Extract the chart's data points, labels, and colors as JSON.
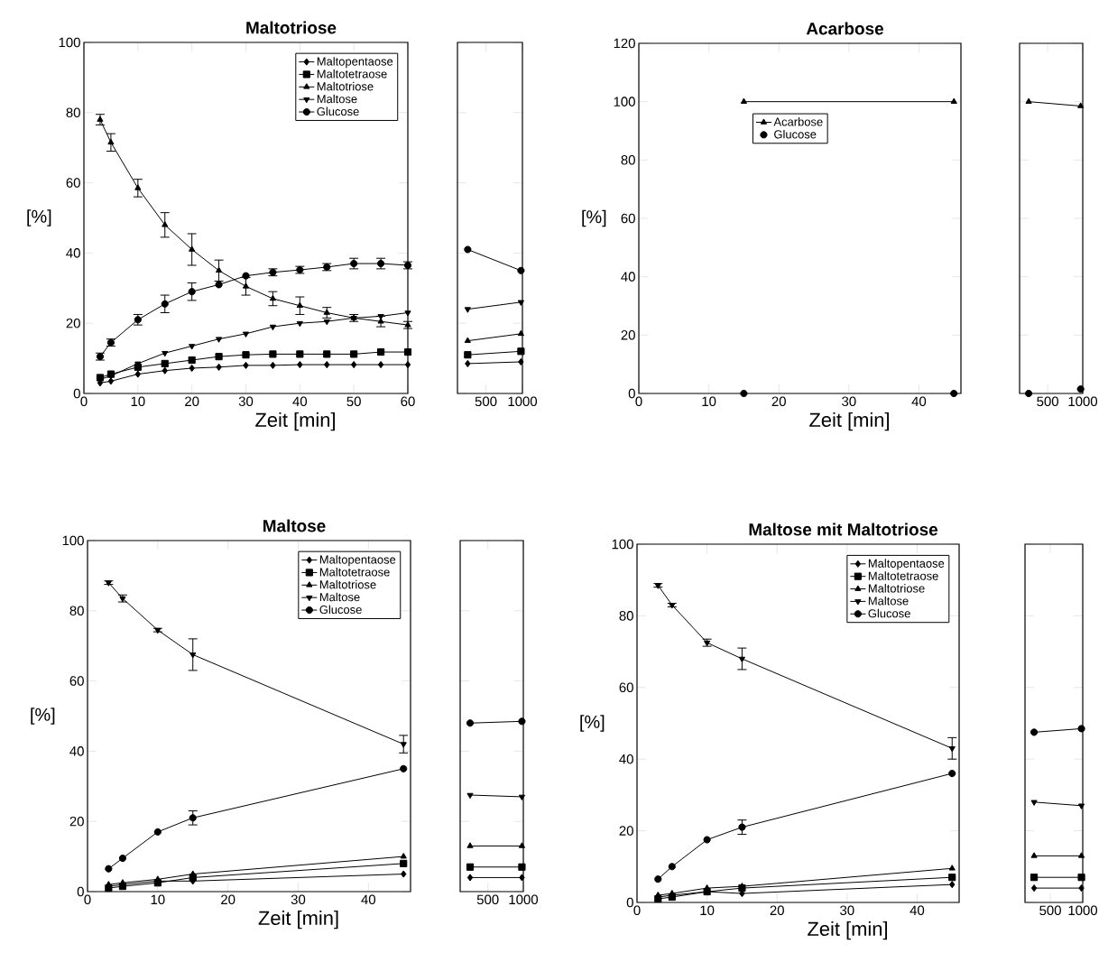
{
  "chart_data": [
    {
      "type": "line",
      "title": "Maltotriose",
      "xlabel": "Zeit [min]",
      "ylabel": "[%]",
      "x": [
        3,
        5,
        10,
        15,
        20,
        25,
        30,
        35,
        40,
        45,
        50,
        55,
        60
      ],
      "xlim": [
        0,
        60
      ],
      "xticks": [
        0,
        10,
        20,
        30,
        40,
        50,
        60
      ],
      "ylim": [
        0,
        100
      ],
      "yticks": [
        0,
        20,
        40,
        60,
        80,
        100
      ],
      "legend": "top right",
      "series": [
        {
          "name": "Maltopentaose",
          "color": "#000000",
          "marker": "diamond",
          "values": [
            3,
            3.5,
            5.5,
            6.5,
            7.2,
            7.5,
            8,
            8,
            8.2,
            8.2,
            8.2,
            8.2,
            8.2
          ]
        },
        {
          "name": "Maltotetraose",
          "color": "#000000",
          "marker": "square",
          "values": [
            4.5,
            5.5,
            7.5,
            8.5,
            9.5,
            10.5,
            11,
            11.2,
            11.2,
            11.2,
            11.2,
            11.8,
            11.8
          ]
        },
        {
          "name": "Maltotriose",
          "color": "#000000",
          "marker": "triangle",
          "values": [
            78,
            71.5,
            58.5,
            48,
            41,
            35,
            30.5,
            27,
            25,
            23,
            21.5,
            20.5,
            19.5
          ],
          "errors": [
            1.5,
            2.5,
            2.5,
            3.5,
            4.5,
            3,
            2.5,
            2,
            2.5,
            1.5,
            1,
            1.5,
            1
          ]
        },
        {
          "name": "Maltose",
          "color": "#000000",
          "marker": "triangle-down",
          "values": [
            4,
            5,
            8.5,
            11.5,
            13.5,
            15.5,
            17,
            19,
            20,
            20.5,
            21.5,
            22,
            23
          ]
        },
        {
          "name": "Glucose",
          "color": "#000000",
          "marker": "circle",
          "values": [
            10.5,
            14.5,
            21,
            25.5,
            29,
            31,
            33.5,
            34.5,
            35.2,
            36,
            37,
            37,
            36.5
          ],
          "errors": [
            1,
            1,
            1.5,
            2.5,
            2.5,
            null,
            null,
            1,
            1,
            1,
            1.5,
            1.5,
            1
          ]
        }
      ]
    },
    {
      "type": "line",
      "x": [
        250,
        980
      ],
      "xlim": [
        110,
        1000
      ],
      "xticks": [
        500,
        1000
      ],
      "ylim": [
        0,
        100
      ],
      "yticks": [
        0,
        20,
        40,
        60,
        80,
        100
      ],
      "tick_labels": "x",
      "series": [
        {
          "color": "#000000",
          "marker": "diamond",
          "values": [
            8.5,
            9
          ]
        },
        {
          "color": "#000000",
          "marker": "square",
          "values": [
            11,
            12
          ]
        },
        {
          "color": "#000000",
          "marker": "triangle",
          "values": [
            15,
            17
          ]
        },
        {
          "color": "#000000",
          "marker": "triangle-down",
          "values": [
            24,
            26
          ]
        },
        {
          "color": "#000000",
          "marker": "circle",
          "values": [
            41,
            35
          ]
        }
      ]
    },
    {
      "type": "line",
      "title": "Acarbose",
      "xlabel": "Zeit [min]",
      "ylabel": "[%]",
      "x": [
        15,
        45
      ],
      "xlim": [
        0,
        46
      ],
      "xticks": [
        0,
        10,
        20,
        30,
        40
      ],
      "ylim": [
        0,
        120
      ],
      "yticks": [
        0,
        20,
        40,
        60,
        80,
        100,
        120
      ],
      "legend": "top",
      "series": [
        {
          "name": "Acarbose",
          "color": "#000000",
          "marker": "triangle",
          "values": [
            100,
            100
          ]
        },
        {
          "name": "Glucose",
          "type": "scatter",
          "color": "#000000",
          "marker": "circle",
          "values": [
            0,
            0
          ]
        }
      ]
    },
    {
      "type": "line",
      "x": [
        230,
        970
      ],
      "xlim": [
        100,
        1000
      ],
      "xticks": [
        500,
        1000
      ],
      "ylim": [
        0,
        120
      ],
      "yticks": [
        0,
        20,
        40,
        60,
        80,
        100,
        120
      ],
      "tick_labels": "x",
      "series": [
        {
          "color": "#000000",
          "marker": "triangle",
          "values": [
            100,
            98.5
          ]
        },
        {
          "type": "scatter",
          "color": "#000000",
          "marker": "circle",
          "values": [
            0,
            1.5
          ]
        }
      ]
    },
    {
      "type": "line",
      "title": "Maltose",
      "xlabel": "Zeit [min]",
      "ylabel": "[%]",
      "x": [
        3,
        5,
        10,
        15,
        45
      ],
      "xlim": [
        0,
        46
      ],
      "xticks": [
        0,
        10,
        20,
        30,
        40
      ],
      "ylim": [
        0,
        100
      ],
      "yticks": [
        0,
        20,
        40,
        60,
        80,
        100
      ],
      "legend": "top right",
      "series": [
        {
          "name": "Maltopentaose",
          "color": "#000000",
          "marker": "diamond",
          "values": [
            1.5,
            2,
            3,
            3,
            5
          ]
        },
        {
          "name": "Maltotetraose",
          "color": "#000000",
          "marker": "square",
          "values": [
            1,
            1.5,
            2.5,
            4,
            8
          ]
        },
        {
          "name": "Maltotriose",
          "color": "#000000",
          "marker": "triangle",
          "values": [
            2,
            2.5,
            3.5,
            5,
            10
          ]
        },
        {
          "name": "Maltose",
          "color": "#000000",
          "marker": "triangle-down",
          "values": [
            88,
            83.5,
            74.5,
            67.5,
            42
          ],
          "errors": [
            0.5,
            1,
            0.5,
            4.5,
            2.5
          ]
        },
        {
          "name": "Glucose",
          "color": "#000000",
          "marker": "circle",
          "values": [
            6.5,
            9.5,
            17,
            21,
            35
          ],
          "errors": [
            null,
            null,
            null,
            2,
            null
          ]
        }
      ]
    },
    {
      "type": "line",
      "x": [
        250,
        980
      ],
      "xlim": [
        110,
        1000
      ],
      "xticks": [
        500,
        1000
      ],
      "ylim": [
        0,
        100
      ],
      "yticks": [
        0,
        20,
        40,
        60,
        80,
        100
      ],
      "tick_labels": "x",
      "series": [
        {
          "color": "#000000",
          "marker": "diamond",
          "values": [
            4,
            4
          ]
        },
        {
          "color": "#000000",
          "marker": "square",
          "values": [
            7,
            7
          ]
        },
        {
          "color": "#000000",
          "marker": "triangle",
          "values": [
            13,
            13
          ]
        },
        {
          "color": "#000000",
          "marker": "triangle-down",
          "values": [
            27.5,
            27
          ]
        },
        {
          "color": "#000000",
          "marker": "circle",
          "values": [
            48,
            48.5
          ]
        }
      ]
    },
    {
      "type": "line",
      "title": "Maltose mit Maltotriose",
      "xlabel": "Zeit [min]",
      "ylabel": "[%]",
      "x": [
        3,
        5,
        10,
        15,
        45
      ],
      "xlim": [
        0,
        46
      ],
      "xticks": [
        0,
        10,
        20,
        30,
        40
      ],
      "ylim": [
        0,
        100
      ],
      "yticks": [
        0,
        20,
        40,
        60,
        80,
        100
      ],
      "legend": "top right",
      "series": [
        {
          "name": "Maltopentaose",
          "color": "#000000",
          "marker": "diamond",
          "values": [
            1.5,
            2,
            3,
            2.5,
            5
          ]
        },
        {
          "name": "Maltotetraose",
          "color": "#000000",
          "marker": "square",
          "values": [
            1,
            1.5,
            3,
            4,
            7
          ]
        },
        {
          "name": "Maltotriose",
          "color": "#000000",
          "marker": "triangle",
          "values": [
            2,
            2.5,
            4,
            4.5,
            9.5
          ]
        },
        {
          "name": "Maltose",
          "color": "#000000",
          "marker": "triangle-down",
          "values": [
            88.5,
            83,
            72.5,
            68,
            43
          ],
          "errors": [
            0.5,
            0.5,
            1,
            3,
            3
          ]
        },
        {
          "name": "Glucose",
          "color": "#000000",
          "marker": "circle",
          "values": [
            6.5,
            10,
            17.5,
            21,
            36
          ],
          "errors": [
            null,
            null,
            null,
            2,
            null
          ]
        }
      ]
    },
    {
      "type": "line",
      "x": [
        250,
        980
      ],
      "xlim": [
        110,
        1000
      ],
      "xticks": [
        500,
        1000
      ],
      "ylim": [
        0,
        100
      ],
      "yticks": [
        0,
        20,
        40,
        60,
        80,
        100
      ],
      "tick_labels": "x",
      "series": [
        {
          "color": "#000000",
          "marker": "diamond",
          "values": [
            4,
            4
          ]
        },
        {
          "color": "#000000",
          "marker": "square",
          "values": [
            7,
            7
          ]
        },
        {
          "color": "#000000",
          "marker": "triangle",
          "values": [
            13,
            13
          ]
        },
        {
          "color": "#000000",
          "marker": "triangle-down",
          "values": [
            28,
            27
          ]
        },
        {
          "color": "#000000",
          "marker": "circle",
          "values": [
            47.5,
            48.5
          ]
        }
      ]
    }
  ]
}
